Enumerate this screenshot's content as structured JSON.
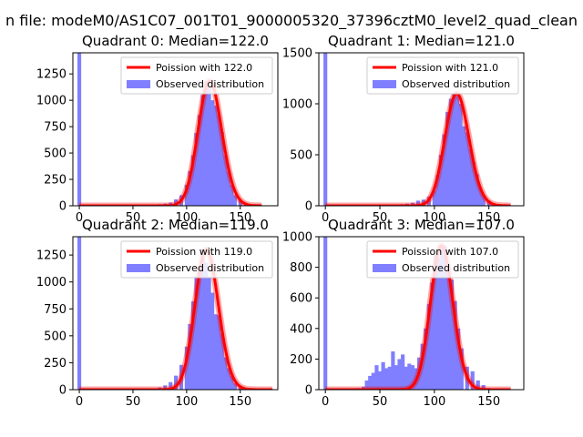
{
  "figure": {
    "suptitle": "n file: modeM0/AS1C07_001T01_9000005320_37396cztM0_level2_quad_clean"
  },
  "colors": {
    "histogram": "#7f7fff",
    "fit_line": "#ff0000",
    "axes": "#000000",
    "background": "#ffffff"
  },
  "chart_data": [
    {
      "type": "bar",
      "title": "Quadrant 0: Median=122.0",
      "legend": {
        "placement": "top-right",
        "entries": [
          "Poission with 122.0",
          "Observed distribution"
        ]
      },
      "xlim": [
        -6,
        185
      ],
      "ylim": [
        0,
        1450
      ],
      "xticks": [
        0,
        50,
        100,
        150
      ],
      "yticks": [
        0,
        250,
        500,
        750,
        1000,
        1250
      ],
      "bin_width": 3.5,
      "hist_x": [
        0,
        70,
        75,
        80,
        85,
        90,
        95,
        100,
        103,
        106,
        109,
        112,
        115,
        118,
        121,
        124,
        127,
        130,
        133,
        136,
        139,
        142,
        145,
        150,
        155,
        160
      ],
      "hist_y": [
        1450,
        10,
        15,
        20,
        30,
        60,
        100,
        200,
        330,
        480,
        690,
        860,
        1050,
        1180,
        1120,
        1000,
        950,
        860,
        700,
        480,
        330,
        200,
        100,
        50,
        20,
        5
      ],
      "poisson_lambda": 122.0,
      "curve_x_range": [
        0,
        170
      ]
    },
    {
      "type": "bar",
      "title": "Quadrant 1: Median=121.0",
      "legend": {
        "placement": "top-right",
        "entries": [
          "Poission with 121.0",
          "Observed distribution"
        ]
      },
      "xlim": [
        -6,
        182
      ],
      "ylim": [
        0,
        1500
      ],
      "xticks": [
        0,
        50,
        100,
        150
      ],
      "yticks": [
        0,
        500,
        1000,
        1500
      ],
      "bin_width": 3.5,
      "hist_x": [
        0,
        60,
        65,
        70,
        75,
        80,
        85,
        90,
        95,
        100,
        103,
        106,
        109,
        112,
        115,
        118,
        121,
        124,
        127,
        130,
        133,
        136,
        139,
        142,
        145,
        150,
        155
      ],
      "hist_y": [
        1500,
        5,
        10,
        15,
        20,
        30,
        50,
        60,
        90,
        150,
        300,
        500,
        700,
        920,
        1050,
        1100,
        1080,
        1000,
        780,
        720,
        560,
        430,
        310,
        180,
        100,
        50,
        15
      ],
      "poisson_lambda": 121.0,
      "curve_x_range": [
        0,
        170
      ]
    },
    {
      "type": "bar",
      "title": "Quadrant 2: Median=119.0",
      "legend": {
        "placement": "top-right",
        "entries": [
          "Poission with 119.0",
          "Observed distribution"
        ]
      },
      "xlim": [
        -6,
        185
      ],
      "ylim": [
        0,
        1420
      ],
      "xticks": [
        0,
        50,
        100,
        150
      ],
      "yticks": [
        0,
        250,
        500,
        750,
        1000,
        1250
      ],
      "bin_width": 3.5,
      "hist_x": [
        0,
        65,
        70,
        75,
        80,
        85,
        90,
        95,
        100,
        103,
        106,
        109,
        112,
        115,
        118,
        121,
        124,
        127,
        130,
        133,
        136,
        139,
        142,
        145,
        150,
        155
      ],
      "hist_y": [
        1420,
        5,
        10,
        20,
        40,
        70,
        130,
        230,
        400,
        610,
        820,
        1050,
        1120,
        1300,
        1180,
        1050,
        900,
        700,
        690,
        520,
        300,
        200,
        130,
        60,
        20,
        5
      ],
      "poisson_lambda": 119.0,
      "curve_x_range": [
        0,
        180
      ]
    },
    {
      "type": "bar",
      "title": "Quadrant 3: Median=107.0",
      "legend": {
        "placement": "top-right",
        "entries": [
          "Poission with 107.0",
          "Observed distribution"
        ]
      },
      "xlim": [
        -6,
        182
      ],
      "ylim": [
        0,
        1000
      ],
      "xticks": [
        0,
        50,
        100,
        150
      ],
      "yticks": [
        0,
        200,
        400,
        600,
        800,
        1000
      ],
      "bin_width": 3.5,
      "hist_x": [
        0,
        25,
        30,
        35,
        38,
        41,
        44,
        47,
        50,
        53,
        56,
        59,
        62,
        65,
        68,
        71,
        74,
        77,
        80,
        83,
        86,
        89,
        92,
        95,
        98,
        101,
        104,
        107,
        110,
        113,
        116,
        119,
        122,
        125,
        130,
        135,
        140,
        145,
        150,
        155
      ],
      "hist_y": [
        1000,
        5,
        10,
        20,
        60,
        90,
        110,
        160,
        120,
        180,
        140,
        150,
        250,
        160,
        200,
        230,
        150,
        170,
        160,
        140,
        210,
        300,
        400,
        560,
        700,
        880,
        860,
        930,
        940,
        820,
        720,
        580,
        400,
        270,
        150,
        120,
        60,
        30,
        10,
        5
      ],
      "poisson_lambda": 107.0,
      "curve_x_range": [
        0,
        170
      ]
    }
  ]
}
